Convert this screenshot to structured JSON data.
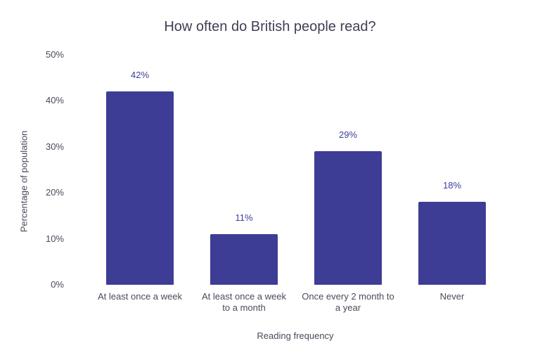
{
  "chart_data": {
    "type": "bar",
    "title": "How often do British people read?",
    "xlabel": "Reading frequency",
    "ylabel": "Percentage of population",
    "categories": [
      "At least once a week",
      "At least once a week to a month",
      "Once every 2 month to a year",
      "Never"
    ],
    "category_display": [
      "At least once a week",
      "At least once a week\nto a month",
      "Once every 2 month to\na year",
      "Never"
    ],
    "values": [
      42,
      11,
      29,
      18
    ],
    "value_labels": [
      "42%",
      "11%",
      "29%",
      "18%"
    ],
    "yticks": [
      "0%",
      "10%",
      "20%",
      "30%",
      "40%",
      "50%"
    ],
    "ylim": [
      0,
      50
    ],
    "grid": false,
    "legend": null,
    "bar_color": "#3d3d96"
  }
}
